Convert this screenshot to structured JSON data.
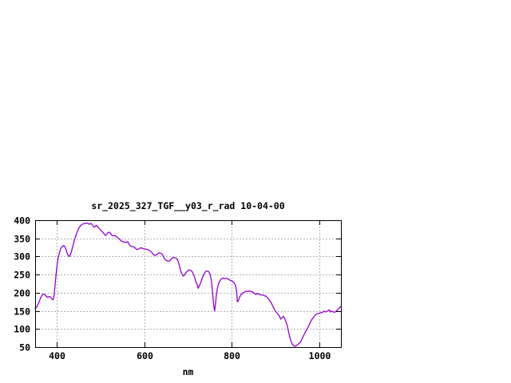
{
  "window": {
    "background_color": "#ffffff"
  },
  "chart_data": {
    "type": "line",
    "title": "sr_2025_327_TGF__y03_r_rad 10-04-00",
    "xlabel": "nm",
    "ylabel": "",
    "xlim": [
      350,
      1050
    ],
    "ylim": [
      50,
      400
    ],
    "x_ticks": [
      400,
      600,
      800,
      1000
    ],
    "y_ticks": [
      50,
      100,
      150,
      200,
      250,
      300,
      350,
      400
    ],
    "grid": true,
    "legend_position": "none",
    "line_color": "#9400d3",
    "grid_color": "#b0b0b0",
    "text_color": "#000000",
    "series": [
      {
        "name": "sr_2025_327_TGF__y03_r_rad",
        "x": [
          350,
          353,
          356,
          359,
          362,
          365,
          368,
          371,
          374,
          377,
          380,
          383,
          386,
          389,
          391,
          393,
          395,
          397,
          399,
          401,
          403,
          405,
          408,
          411,
          414,
          417,
          420,
          423,
          426,
          428,
          430,
          433,
          436,
          439,
          442,
          445,
          448,
          451,
          454,
          457,
          460,
          463,
          466,
          469,
          472,
          475,
          478,
          481,
          484,
          487,
          490,
          493,
          496,
          499,
          502,
          505,
          508,
          511,
          514,
          517,
          520,
          523,
          526,
          529,
          532,
          535,
          538,
          541,
          544,
          547,
          550,
          553,
          556,
          559,
          562,
          565,
          568,
          571,
          574,
          577,
          580,
          583,
          586,
          589,
          592,
          595,
          598,
          601,
          604,
          607,
          610,
          613,
          616,
          619,
          622,
          625,
          628,
          631,
          634,
          637,
          640,
          643,
          646,
          649,
          652,
          655,
          658,
          661,
          664,
          667,
          670,
          673,
          676,
          679,
          682,
          685,
          688,
          690,
          692,
          694,
          697,
          700,
          703,
          706,
          709,
          712,
          715,
          718,
          721,
          723,
          726,
          729,
          732,
          735,
          738,
          741,
          744,
          747,
          750,
          753,
          755,
          757,
          759,
          761,
          763,
          765,
          767,
          770,
          773,
          776,
          779,
          782,
          785,
          788,
          791,
          794,
          797,
          800,
          803,
          806,
          809,
          811,
          813,
          815,
          817,
          819,
          822,
          825,
          828,
          831,
          834,
          837,
          840,
          843,
          846,
          849,
          852,
          855,
          858,
          861,
          864,
          867,
          870,
          873,
          876,
          879,
          882,
          885,
          888,
          891,
          894,
          897,
          900,
          903,
          906,
          909,
          912,
          915,
          918,
          921,
          924,
          927,
          930,
          933,
          936,
          939,
          942,
          945,
          948,
          951,
          954,
          957,
          960,
          963,
          966,
          969,
          972,
          975,
          978,
          981,
          984,
          987,
          990,
          993,
          996,
          999,
          1002,
          1005,
          1008,
          1011,
          1014,
          1017,
          1020,
          1023,
          1026,
          1029,
          1032,
          1035,
          1038,
          1041,
          1044,
          1047,
          1050
        ],
        "y": [
          157,
          160,
          166,
          175,
          184,
          191,
          196,
          196,
          192,
          188,
          188,
          190,
          186,
          182,
          181,
          189,
          212,
          238,
          263,
          283,
          297,
          308,
          320,
          326,
          330,
          329,
          322,
          310,
          302,
          300,
          303,
          313,
          327,
          341,
          353,
          364,
          373,
          380,
          385,
          388,
          390,
          391,
          392,
          392,
          390,
          389,
          391,
          388,
          381,
          382,
          386,
          383,
          378,
          374,
          370,
          367,
          362,
          358,
          361,
          366,
          367,
          363,
          358,
          357,
          358,
          356,
          353,
          350,
          347,
          343,
          341,
          340,
          339,
          339,
          341,
          334,
          329,
          328,
          327,
          326,
          322,
          319,
          320,
          322,
          324,
          323,
          321,
          321,
          320,
          319,
          318,
          316,
          313,
          308,
          304,
          303,
          305,
          308,
          310,
          309,
          307,
          301,
          294,
          290,
          288,
          287,
          288,
          292,
          296,
          297,
          296,
          295,
          291,
          280,
          265,
          254,
          248,
          246,
          249,
          253,
          258,
          261,
          263,
          262,
          259,
          252,
          243,
          231,
          222,
          212,
          219,
          228,
          238,
          248,
          255,
          259,
          260,
          259,
          252,
          238,
          215,
          190,
          162,
          150,
          172,
          196,
          212,
          225,
          233,
          238,
          240,
          240,
          239,
          240,
          238,
          236,
          234,
          233,
          230,
          227,
          219,
          206,
          175,
          178,
          184,
          190,
          196,
          199,
          201,
          203,
          204,
          203,
          205,
          204,
          203,
          201,
          198,
          195,
          197,
          197,
          195,
          194,
          194,
          193,
          191,
          190,
          186,
          182,
          176,
          171,
          163,
          156,
          149,
          145,
          140,
          136,
          127,
          131,
          135,
          130,
          120,
          110,
          93,
          78,
          65,
          57,
          54,
          52,
          54,
          57,
          60,
          63,
          70,
          78,
          85,
          93,
          98,
          106,
          113,
          121,
          127,
          132,
          137,
          140,
          142,
          143,
          144,
          145,
          146,
          149,
          147,
          148,
          150,
          153,
          147,
          149,
          147,
          146,
          148,
          151,
          155,
          159,
          162
        ]
      }
    ]
  }
}
